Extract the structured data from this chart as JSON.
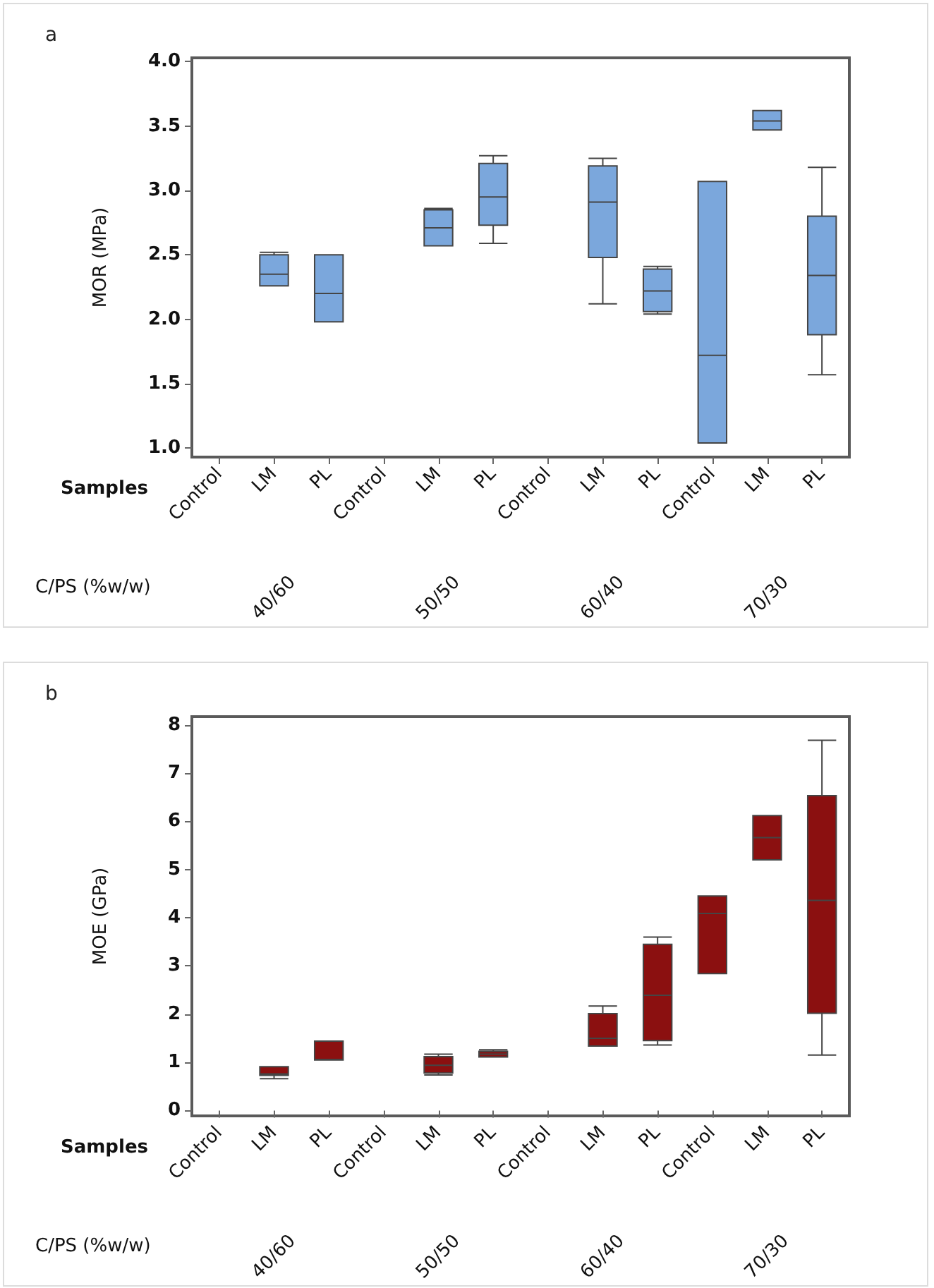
{
  "chart_data": [
    {
      "type": "box",
      "title": "a",
      "xlabel": "Samples",
      "ylabel": "MOR (MPa)",
      "categories": [
        "Control",
        "LM",
        "PL",
        "Control",
        "LM",
        "PL",
        "Control",
        "LM",
        "PL",
        "Control",
        "LM",
        "PL"
      ],
      "annotations": [
        "C/PS (%w/w)",
        "40/60",
        "50/50",
        "60/40",
        "70/30"
      ],
      "ylim": [
        0.93,
        4.03
      ],
      "yticks": [
        {
          "value": 1,
          "label": "1.0"
        },
        {
          "value": 1.5,
          "label": "1.5"
        },
        {
          "value": 2,
          "label": "2.0"
        },
        {
          "value": 2.5,
          "label": "2.5"
        },
        {
          "value": 3,
          "label": "3.0"
        },
        {
          "value": 3.5,
          "label": "3.5"
        },
        {
          "value": 4,
          "label": "4.0"
        }
      ],
      "grid": false,
      "series": [
        {
          "color": "#7ba7dc",
          "boxes": [
            null,
            {
              "low": 2.26,
              "q1": 2.26,
              "median": 2.35,
              "q3": 2.5,
              "high": 2.52
            },
            {
              "low": 1.98,
              "q1": 1.98,
              "median": 2.2,
              "q3": 2.5,
              "high": 2.5
            },
            null,
            {
              "low": 2.57,
              "q1": 2.57,
              "median": 2.71,
              "q3": 2.85,
              "high": 2.86
            },
            {
              "low": 2.59,
              "q1": 2.73,
              "median": 2.95,
              "q3": 3.21,
              "high": 3.27
            },
            null,
            {
              "low": 2.12,
              "q1": 2.48,
              "median": 2.91,
              "q3": 3.19,
              "high": 3.25
            },
            {
              "low": 2.04,
              "q1": 2.06,
              "median": 2.22,
              "q3": 2.39,
              "high": 2.41
            },
            {
              "low": 1.04,
              "q1": 1.04,
              "median": 1.72,
              "q3": 3.07,
              "high": 3.07
            },
            {
              "low": 3.47,
              "q1": 3.47,
              "median": 3.54,
              "q3": 3.62,
              "high": 3.62
            },
            {
              "low": 1.57,
              "q1": 1.88,
              "median": 2.34,
              "q3": 2.8,
              "high": 3.18
            }
          ]
        }
      ]
    },
    {
      "type": "box",
      "title": "b",
      "xlabel": "Samples",
      "ylabel": "MOE (GPa)",
      "categories": [
        "Control",
        "LM",
        "PL",
        "Control",
        "LM",
        "PL",
        "Control",
        "LM",
        "PL",
        "Control",
        "LM",
        "PL"
      ],
      "annotations": [
        "C/PS (%w/w)",
        "40/60",
        "50/50",
        "60/40",
        "70/30"
      ],
      "ylim": [
        -0.11,
        8.17
      ],
      "yticks": [
        0,
        1,
        2,
        3,
        4,
        5,
        6,
        7,
        8
      ],
      "grid": false,
      "series": [
        {
          "color": "#8b1010",
          "boxes": [
            null,
            {
              "low": 0.66,
              "q1": 0.73,
              "median": 0.76,
              "q3": 0.91,
              "high": 0.91
            },
            {
              "low": 1.05,
              "q1": 1.05,
              "median": 1.06,
              "q3": 1.44,
              "high": 1.44
            },
            null,
            {
              "low": 0.74,
              "q1": 0.78,
              "median": 0.94,
              "q3": 1.12,
              "high": 1.17
            },
            {
              "low": 1.11,
              "q1": 1.11,
              "median": 1.17,
              "q3": 1.23,
              "high": 1.26
            },
            null,
            {
              "low": 1.34,
              "q1": 1.34,
              "median": 1.5,
              "q3": 2.01,
              "high": 2.17
            },
            {
              "low": 1.36,
              "q1": 1.45,
              "median": 2.39,
              "q3": 3.45,
              "high": 3.6
            },
            {
              "low": 2.84,
              "q1": 2.84,
              "median": 4.09,
              "q3": 4.45,
              "high": 4.45
            },
            {
              "low": 5.2,
              "q1": 5.2,
              "median": 5.66,
              "q3": 6.12,
              "high": 6.12
            },
            {
              "low": 1.15,
              "q1": 2.02,
              "median": 4.36,
              "q3": 6.53,
              "high": 7.68
            }
          ]
        }
      ]
    }
  ]
}
